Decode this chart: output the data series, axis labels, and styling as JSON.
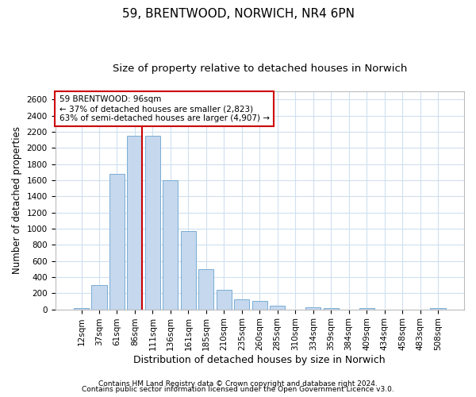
{
  "title1": "59, BRENTWOOD, NORWICH, NR4 6PN",
  "title2": "Size of property relative to detached houses in Norwich",
  "xlabel": "Distribution of detached houses by size in Norwich",
  "ylabel": "Number of detached properties",
  "categories": [
    "12sqm",
    "37sqm",
    "61sqm",
    "86sqm",
    "111sqm",
    "136sqm",
    "161sqm",
    "185sqm",
    "210sqm",
    "235sqm",
    "260sqm",
    "285sqm",
    "310sqm",
    "334sqm",
    "359sqm",
    "384sqm",
    "409sqm",
    "434sqm",
    "458sqm",
    "483sqm",
    "508sqm"
  ],
  "values": [
    20,
    300,
    1680,
    2150,
    2150,
    1600,
    970,
    500,
    245,
    120,
    100,
    45,
    0,
    30,
    20,
    0,
    20,
    0,
    0,
    0,
    20
  ],
  "bar_color": "#c5d8ee",
  "bar_edge_color": "#7aadd4",
  "vline_color": "#cc0000",
  "annotation_text": "59 BRENTWOOD: 96sqm\n← 37% of detached houses are smaller (2,823)\n63% of semi-detached houses are larger (4,907) →",
  "annotation_box_color": "#ffffff",
  "annotation_box_edge": "#cc0000",
  "ylim": [
    0,
    2700
  ],
  "yticks": [
    0,
    200,
    400,
    600,
    800,
    1000,
    1200,
    1400,
    1600,
    1800,
    2000,
    2200,
    2400,
    2600
  ],
  "footer1": "Contains HM Land Registry data © Crown copyright and database right 2024.",
  "footer2": "Contains public sector information licensed under the Open Government Licence v3.0.",
  "bg_color": "#ffffff",
  "plot_bg_color": "#ffffff",
  "title1_fontsize": 11,
  "title2_fontsize": 9.5,
  "xlabel_fontsize": 9,
  "ylabel_fontsize": 8.5,
  "tick_fontsize": 7.5,
  "footer_fontsize": 6.5,
  "grid_color": "#d0dff0"
}
